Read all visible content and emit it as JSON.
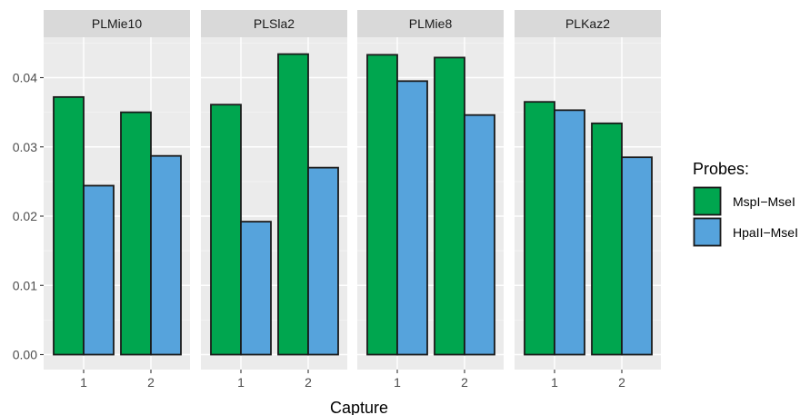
{
  "chart_data": {
    "type": "bar",
    "xlabel": "Capture",
    "ylabel": "",
    "ylim": [
      0,
      0.0455
    ],
    "y_ticks": [
      "0.00",
      "0.01",
      "0.02",
      "0.03",
      "0.04"
    ],
    "categories": [
      "1",
      "2"
    ],
    "grid": true,
    "legend": {
      "title": "Probes:",
      "position": "right",
      "items": [
        {
          "name": "MspI−MseI",
          "color": "#00A64F"
        },
        {
          "name": "HpaII−MseI",
          "color": "#56A3DC"
        }
      ]
    },
    "facets": [
      {
        "name": "PLMie10",
        "series": [
          {
            "name": "MspI−MseI",
            "values": [
              0.0372,
              0.035
            ]
          },
          {
            "name": "HpaII−MseI",
            "values": [
              0.0244,
              0.0287
            ]
          }
        ]
      },
      {
        "name": "PLSla2",
        "series": [
          {
            "name": "MspI−MseI",
            "values": [
              0.0361,
              0.0434
            ]
          },
          {
            "name": "HpaII−MseI",
            "values": [
              0.0192,
              0.027
            ]
          }
        ]
      },
      {
        "name": "PLMie8",
        "series": [
          {
            "name": "MspI−MseI",
            "values": [
              0.0433,
              0.0429
            ]
          },
          {
            "name": "HpaII−MseI",
            "values": [
              0.0395,
              0.0346
            ]
          }
        ]
      },
      {
        "name": "PLKaz2",
        "series": [
          {
            "name": "MspI−MseI",
            "values": [
              0.0365,
              0.0334
            ]
          },
          {
            "name": "HpaII−MseI",
            "values": [
              0.0353,
              0.0285
            ]
          }
        ]
      }
    ]
  }
}
